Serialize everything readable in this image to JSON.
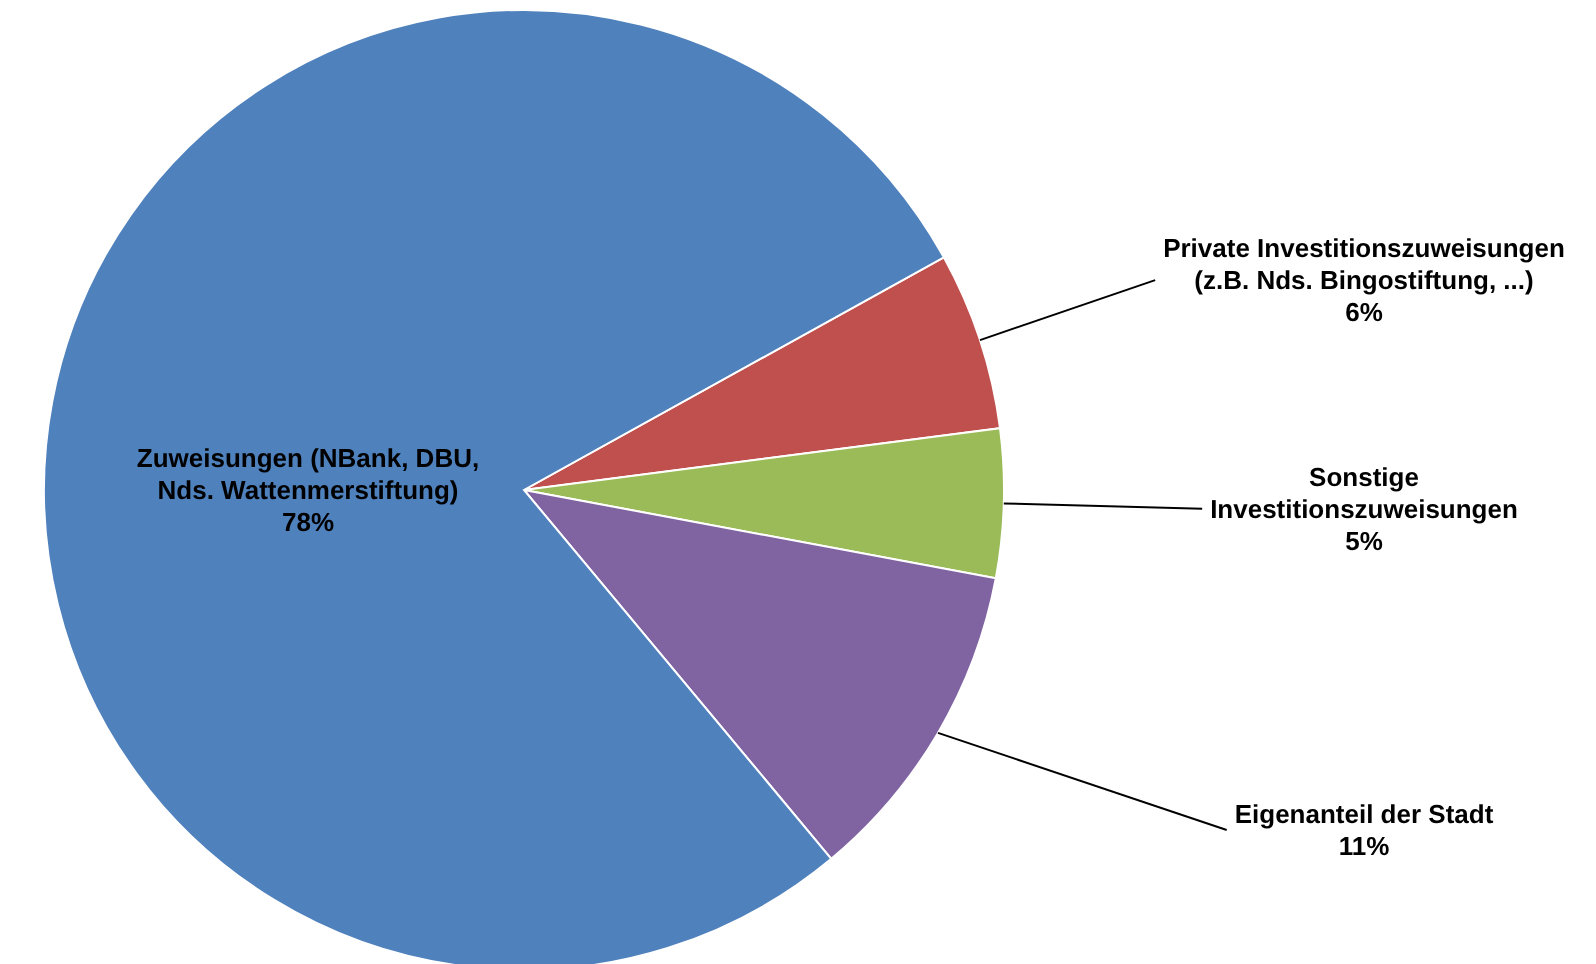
{
  "chart_data": {
    "type": "pie",
    "categories": [
      "Private Investitionszuweisungen (z.B. Nds. Bingostiftung, ...)",
      "Sonstige Investitionszuweisungen",
      "Eigenanteil der Stadt",
      "Zuweisungen (NBank, DBU, Nds. Wattenmerstiftung)"
    ],
    "values": [
      6,
      5,
      11,
      78
    ],
    "colors": [
      "#c0504d",
      "#9bbb59",
      "#8064a2",
      "#4f81bd"
    ],
    "value_labels": [
      "6%",
      "5%",
      "11%",
      "78%"
    ]
  }
}
